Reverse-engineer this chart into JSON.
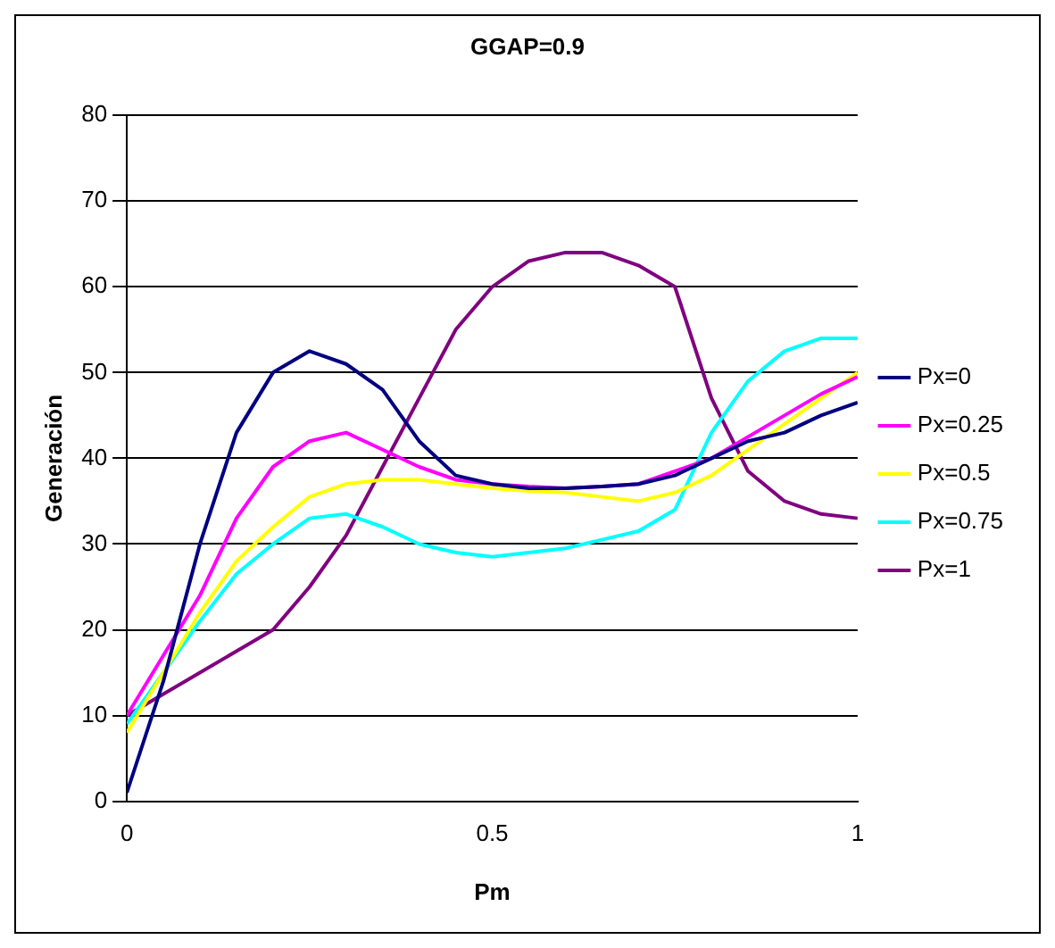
{
  "chart_data": {
    "type": "line",
    "title": "GGAP=0.9",
    "xlabel": "Pm",
    "ylabel": "Generación",
    "x": [
      0,
      0.05,
      0.1,
      0.15,
      0.2,
      0.25,
      0.3,
      0.35,
      0.4,
      0.45,
      0.5,
      0.55,
      0.6,
      0.65,
      0.7,
      0.75,
      0.8,
      0.85,
      0.9,
      0.95,
      1
    ],
    "series": [
      {
        "name": "Px=0",
        "color": "#000080",
        "values": [
          1,
          14,
          30,
          43,
          50,
          52.5,
          51,
          48,
          42,
          38,
          37,
          36.5,
          36.5,
          36.7,
          37,
          38,
          40,
          42,
          43,
          45,
          46.5
        ]
      },
      {
        "name": "Px=0.25",
        "color": "#ff00ff",
        "values": [
          10,
          17,
          24,
          33,
          39,
          42,
          43,
          41,
          39,
          37.5,
          37,
          36.7,
          36.5,
          36.7,
          37,
          38.5,
          40,
          42.5,
          45,
          47.5,
          49.5
        ]
      },
      {
        "name": "Px=0.5",
        "color": "#ffff00",
        "values": [
          8,
          15,
          22,
          28,
          32,
          35.5,
          37,
          37.5,
          37.5,
          37,
          36.5,
          36.2,
          36,
          35.5,
          35,
          36,
          38,
          41,
          44,
          47,
          50
        ]
      },
      {
        "name": "Px=0.75",
        "color": "#00ffff",
        "values": [
          9,
          15,
          21,
          26.5,
          30,
          33,
          33.5,
          32,
          30,
          29,
          28.5,
          29,
          29.5,
          30.5,
          31.5,
          34,
          43,
          49,
          52.5,
          54,
          54
        ]
      },
      {
        "name": "Px=1",
        "color": "#800080",
        "values": [
          10,
          12.5,
          15,
          17.5,
          20,
          25,
          31,
          39,
          47,
          55,
          60,
          63,
          64,
          64,
          62.5,
          60,
          47,
          38.5,
          35,
          33.5,
          33
        ]
      }
    ],
    "xlim": [
      0,
      1
    ],
    "xticks": [
      0,
      0.5,
      1
    ],
    "ylim": [
      0,
      80
    ],
    "yticks": [
      0,
      10,
      20,
      30,
      40,
      50,
      60,
      70,
      80
    ],
    "grid": "y",
    "legend": "right",
    "marker": "none",
    "line_style": "solid"
  }
}
